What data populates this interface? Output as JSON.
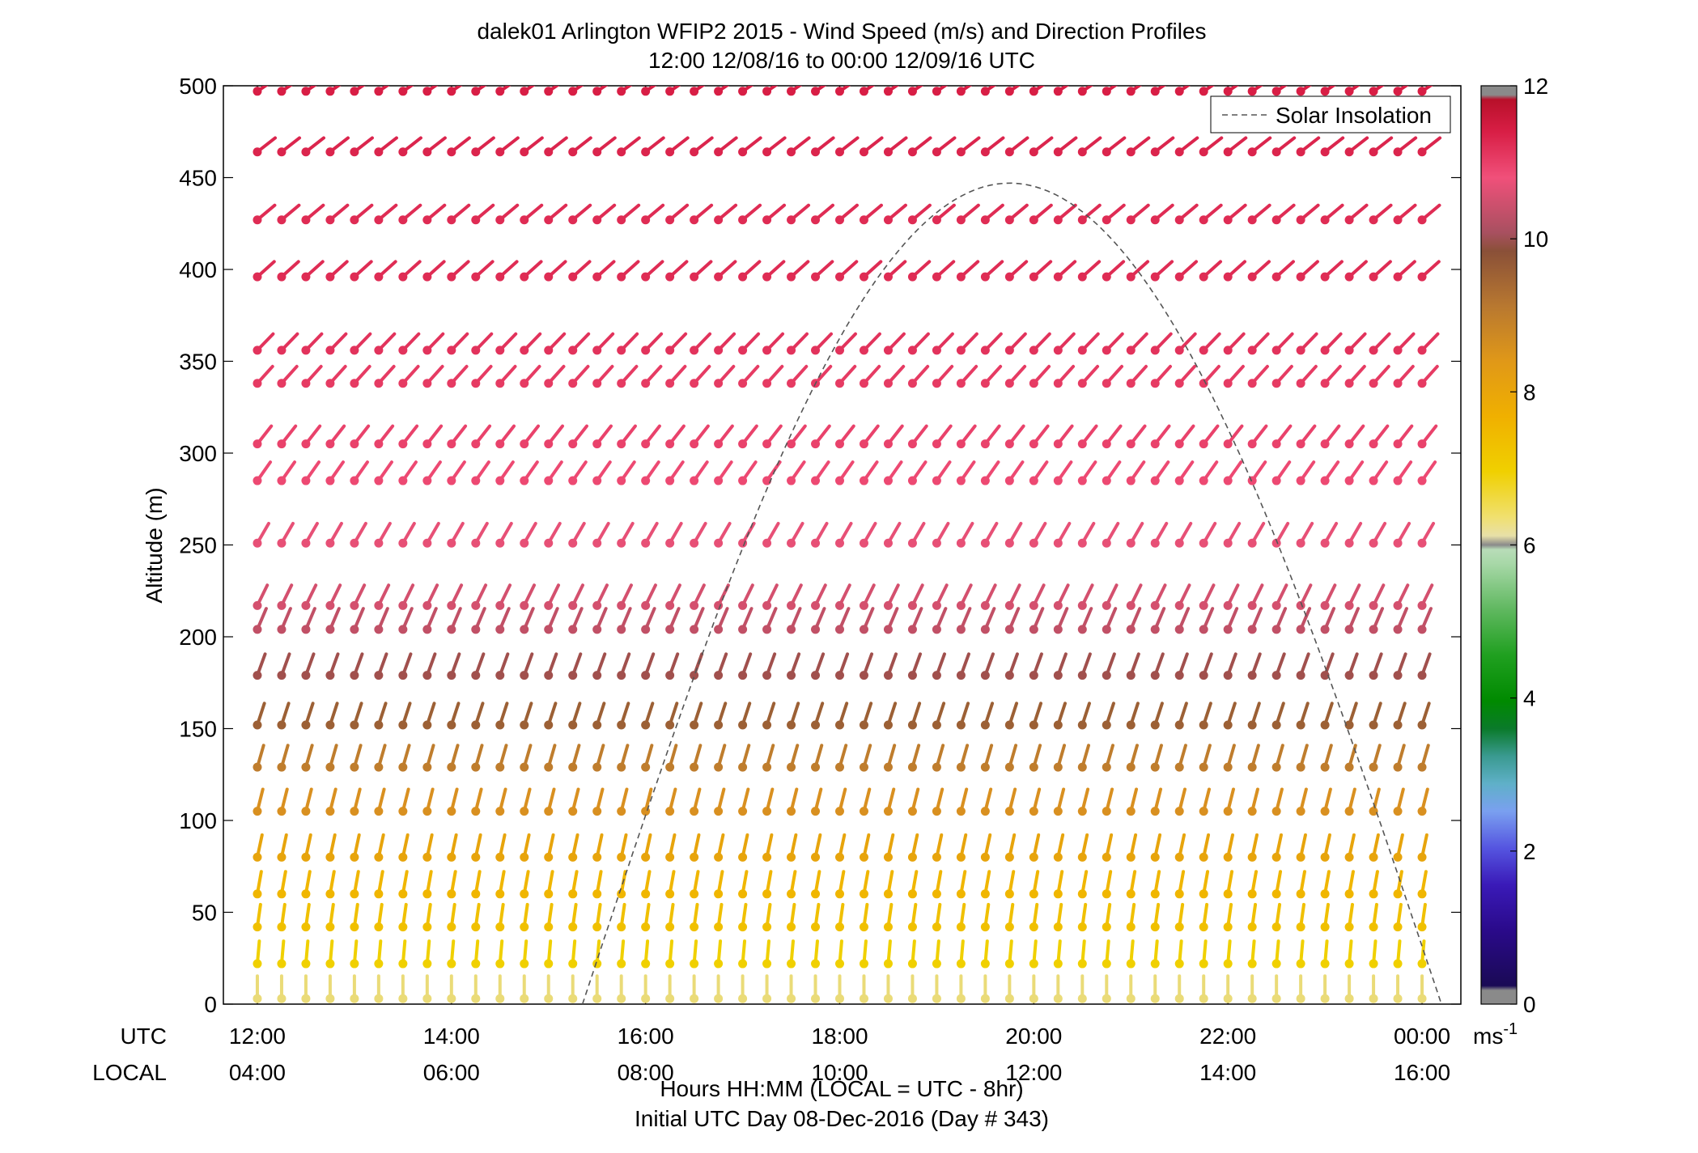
{
  "chart_data": {
    "type": "scatter",
    "title": "dalek01 Arlington WFIP2 2015 - Wind Speed (m/s) and Direction Profiles",
    "subtitle": "12:00 12/08/16 to 00:00 12/09/16  UTC",
    "ylabel": "Altitude (m)",
    "xlabel_line1": "Hours HH:MM  (LOCAL = UTC - 8hr)",
    "xlabel_line2": "Initial UTC Day 08-Dec-2016 (Day # 343)",
    "row_label_utc": "UTC",
    "row_label_local": "LOCAL",
    "ylim": [
      0,
      500
    ],
    "xlim_hours": [
      11.65,
      24.4
    ],
    "yticks": [
      {
        "value": 0,
        "label": "0"
      },
      {
        "value": 50,
        "label": "50"
      },
      {
        "value": 100,
        "label": "100"
      },
      {
        "value": 150,
        "label": "150"
      },
      {
        "value": 200,
        "label": "200"
      },
      {
        "value": 250,
        "label": "250"
      },
      {
        "value": 300,
        "label": "300"
      },
      {
        "value": 350,
        "label": "350"
      },
      {
        "value": 400,
        "label": "400"
      },
      {
        "value": 450,
        "label": "450"
      },
      {
        "value": 500,
        "label": "500"
      }
    ],
    "xticks": [
      {
        "hour": 12,
        "utc": "12:00",
        "local": "04:00"
      },
      {
        "hour": 14,
        "utc": "14:00",
        "local": "06:00"
      },
      {
        "hour": 16,
        "utc": "16:00",
        "local": "08:00"
      },
      {
        "hour": 18,
        "utc": "18:00",
        "local": "10:00"
      },
      {
        "hour": 20,
        "utc": "20:00",
        "local": "12:00"
      },
      {
        "hour": 22,
        "utc": "22:00",
        "local": "14:00"
      },
      {
        "hour": 24,
        "utc": "00:00",
        "local": "16:00"
      }
    ],
    "legend": {
      "label": "Solar Insolation",
      "placement": "top-right"
    },
    "solar_insolation": {
      "start_hour": 15.35,
      "peak_hour": 19.75,
      "end_hour": 24.2,
      "peak_altitude": 447
    },
    "altitude_levels": [
      3,
      22,
      42,
      60,
      80,
      105,
      129,
      152,
      179,
      204,
      217,
      251,
      285,
      305,
      338,
      356,
      396,
      427,
      464,
      497
    ],
    "time_step_minutes": 15,
    "colorbar": {
      "ticks": [
        0,
        2,
        4,
        6,
        8,
        10,
        12
      ],
      "unit_label": "ms",
      "unit_exponent": "-1",
      "range": [
        0,
        12
      ]
    },
    "wind_profiles": [
      {
        "altitude": 3,
        "speed_mps": 6.5,
        "direction_deg": 270
      },
      {
        "altitude": 22,
        "speed_mps": 7.0,
        "direction_deg": 265
      },
      {
        "altitude": 42,
        "speed_mps": 7.5,
        "direction_deg": 262
      },
      {
        "altitude": 60,
        "speed_mps": 7.8,
        "direction_deg": 260
      },
      {
        "altitude": 80,
        "speed_mps": 8.3,
        "direction_deg": 258
      },
      {
        "altitude": 105,
        "speed_mps": 8.8,
        "direction_deg": 256
      },
      {
        "altitude": 129,
        "speed_mps": 9.2,
        "direction_deg": 254
      },
      {
        "altitude": 152,
        "speed_mps": 9.6,
        "direction_deg": 252
      },
      {
        "altitude": 179,
        "speed_mps": 10.0,
        "direction_deg": 250
      },
      {
        "altitude": 204,
        "speed_mps": 10.3,
        "direction_deg": 247
      },
      {
        "altitude": 217,
        "speed_mps": 10.5,
        "direction_deg": 244
      },
      {
        "altitude": 251,
        "speed_mps": 10.7,
        "direction_deg": 240
      },
      {
        "altitude": 285,
        "speed_mps": 10.9,
        "direction_deg": 235
      },
      {
        "altitude": 305,
        "speed_mps": 11.0,
        "direction_deg": 232
      },
      {
        "altitude": 338,
        "speed_mps": 11.1,
        "direction_deg": 228
      },
      {
        "altitude": 356,
        "speed_mps": 11.2,
        "direction_deg": 226
      },
      {
        "altitude": 396,
        "speed_mps": 11.3,
        "direction_deg": 222
      },
      {
        "altitude": 427,
        "speed_mps": 11.3,
        "direction_deg": 220
      },
      {
        "altitude": 464,
        "speed_mps": 11.4,
        "direction_deg": 218
      },
      {
        "altitude": 497,
        "speed_mps": 11.5,
        "direction_deg": 214
      }
    ]
  }
}
